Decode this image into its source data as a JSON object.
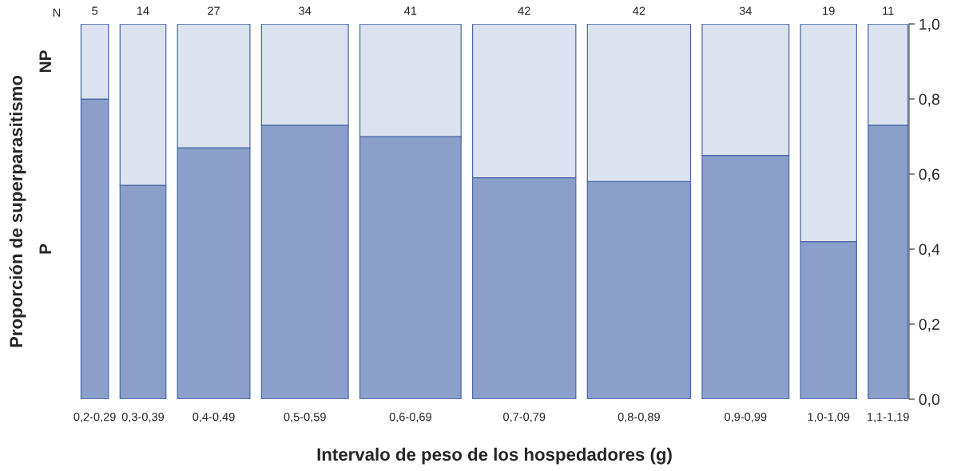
{
  "chart_data": {
    "type": "bar",
    "stacked": true,
    "xlabel": "Intervalo de peso de los hospedadores (g)",
    "ylabel": "Proporción de superparasitismo",
    "categories": [
      "0,2-0,29",
      "0,3-0,39",
      "0,4-0,49",
      "0,5-0,59",
      "0,6-0,69",
      "0,7-0,79",
      "0,8-0,89",
      "0,9-0,99",
      "1,0-1,09",
      "1,1-1,19"
    ],
    "series": [
      {
        "name": "P",
        "color": "#8a9fc9",
        "values": [
          0.8,
          0.57,
          0.67,
          0.73,
          0.7,
          0.59,
          0.58,
          0.65,
          0.42,
          0.73
        ]
      },
      {
        "name": "NP",
        "color": "#dce2ef",
        "values": [
          0.2,
          0.43,
          0.33,
          0.27,
          0.3,
          0.41,
          0.42,
          0.35,
          0.58,
          0.27
        ]
      }
    ],
    "ylim": [
      0,
      1
    ],
    "yticks": [
      {
        "value": 0,
        "label": "0,0"
      },
      {
        "value": 0.2,
        "label": "0,2"
      },
      {
        "value": 0.4,
        "label": "0,4"
      },
      {
        "value": 0.6,
        "label": "0,6"
      },
      {
        "value": 0.8,
        "label": "0,8"
      },
      {
        "value": 1,
        "label": "1,0"
      }
    ],
    "annotations": [
      "N",
      {
        "text": "5",
        "x": "0,2-0,29",
        "y": 1
      },
      {
        "text": "14",
        "x": "0,3-0,39",
        "y": 1
      },
      {
        "text": "27",
        "x": "0,4-0,49",
        "y": 1
      },
      {
        "text": "34",
        "x": "0,5-0,59",
        "y": 1
      },
      {
        "text": "41",
        "x": "0,6-0,69",
        "y": 1
      },
      {
        "text": "42",
        "x": "0,7-0,79",
        "y": 1
      },
      {
        "text": "42",
        "x": "0,8-0,89",
        "y": 1
      },
      {
        "text": "34",
        "x": "0,9-0,99",
        "y": 1
      },
      {
        "text": "19",
        "x": "1,0-1,09",
        "y": 1
      },
      {
        "text": "11",
        "x": "1,1-1,19",
        "y": 1
      }
    ],
    "grid": false,
    "legend": false
  }
}
